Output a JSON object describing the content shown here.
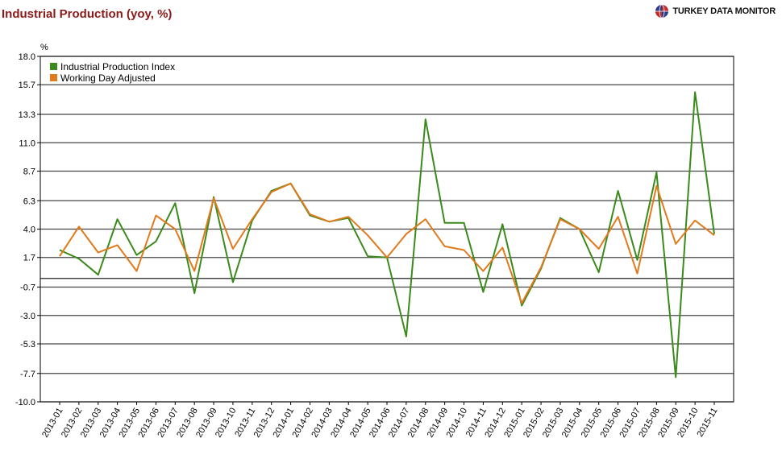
{
  "title": "Industrial Production (yoy, %)",
  "brand": {
    "name": "TURKEY DATA MONITOR",
    "icon": "globe-logo-icon"
  },
  "colors": {
    "title": "#8b1a1a",
    "series1": "#3a8a1c",
    "series2": "#e07a1c",
    "grid": "#444444"
  },
  "chart_data": {
    "type": "line",
    "title": "Industrial Production (yoy, %)",
    "ylabel": "%",
    "xlabel": "",
    "ylim": [
      -10.0,
      18.0
    ],
    "yticks": [
      "18.0",
      "15.7",
      "13.3",
      "11.0",
      "8.7",
      "6.3",
      "4.0",
      "1.7",
      "-0.7",
      "-3.0",
      "-5.3",
      "-7.7",
      "-10.0"
    ],
    "legend_position": "top-left",
    "grid": true,
    "categories": [
      "2013-01",
      "2013-02",
      "2013-03",
      "2013-04",
      "2013-05",
      "2013-06",
      "2013-07",
      "2013-08",
      "2013-09",
      "2013-10",
      "2013-11",
      "2013-12",
      "2014-01",
      "2014-02",
      "2014-03",
      "2014-04",
      "2014-05",
      "2014-06",
      "2014-07",
      "2014-08",
      "2014-09",
      "2014-10",
      "2014-11",
      "2014-12",
      "2015-01",
      "2015-02",
      "2015-03",
      "2015-04",
      "2015-05",
      "2015-06",
      "2015-07",
      "2015-08",
      "2015-09",
      "2015-10",
      "2015-11"
    ],
    "series": [
      {
        "name": "Industrial Production Index",
        "values": [
          2.3,
          1.6,
          0.3,
          4.8,
          1.9,
          3.0,
          6.1,
          -1.2,
          6.6,
          -0.3,
          4.7,
          7.1,
          7.7,
          5.1,
          4.6,
          4.9,
          1.8,
          1.7,
          -4.7,
          12.9,
          4.5,
          4.5,
          -1.1,
          4.4,
          -2.2,
          0.8,
          4.9,
          4.0,
          0.5,
          7.1,
          1.5,
          8.6,
          -8.0,
          15.1,
          3.6
        ]
      },
      {
        "name": "Working Day Adjusted",
        "values": [
          1.8,
          4.2,
          2.1,
          2.7,
          0.6,
          5.1,
          4.0,
          0.6,
          6.5,
          2.4,
          4.8,
          7.0,
          7.7,
          5.2,
          4.6,
          5.0,
          3.5,
          1.7,
          3.6,
          4.8,
          2.6,
          2.3,
          0.6,
          2.5,
          -2.0,
          0.9,
          4.8,
          4.0,
          2.4,
          5.0,
          0.4,
          7.5,
          2.8,
          4.7,
          3.5
        ]
      }
    ]
  }
}
